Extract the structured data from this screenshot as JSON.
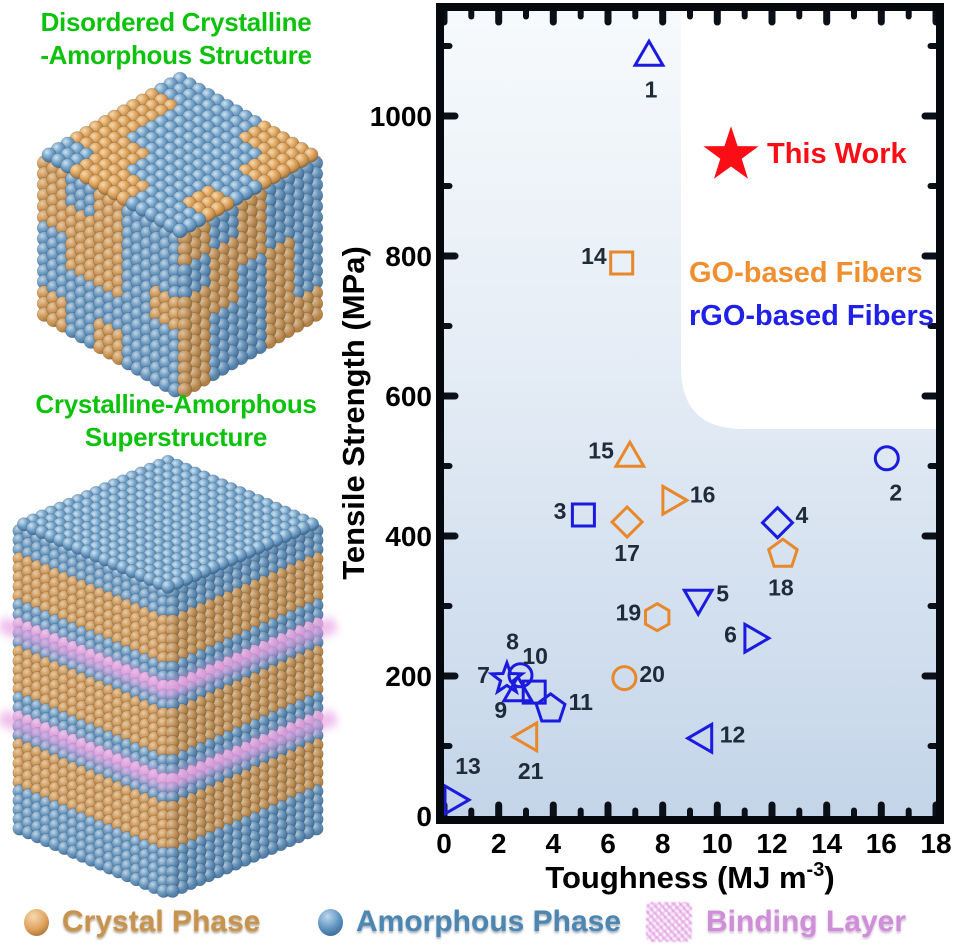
{
  "figure": {
    "panel_titles": {
      "title_color": "#0dc20d",
      "disordered_line1": "Disordered Crystalline",
      "disordered_line2": "-Amorphous Structure",
      "superstructure_line1": "Crystalline-Amorphous",
      "superstructure_line2": "Superstructure"
    },
    "bottom_legend": {
      "items": [
        {
          "label": "Crystal Phase",
          "icon": "orange-sphere-icon",
          "text_color": "#c8934d"
        },
        {
          "label": "Amorphous Phase",
          "icon": "blue-sphere-icon",
          "text_color": "#4e86b2"
        },
        {
          "label": "Binding Layer",
          "icon": "pink-hatch-icon",
          "text_color": "#cf8ed8"
        }
      ]
    }
  },
  "chart_data": {
    "type": "scatter",
    "title": "",
    "xlabel": {
      "pre": "Toughness (MJ m",
      "sup": "-3",
      "post": ")"
    },
    "ylabel": "Tensile Strength (MPa)",
    "xlim": [
      0,
      18
    ],
    "ylim": [
      0,
      1150
    ],
    "xticks": [
      0,
      2,
      4,
      6,
      8,
      10,
      12,
      14,
      16,
      18
    ],
    "yticks": [
      0,
      200,
      400,
      600,
      800,
      1000
    ],
    "x_minor_step": 1,
    "y_minor_step": 100,
    "grid": false,
    "legend_position": "inside-upper-right",
    "highlight": {
      "label": "This Work",
      "x": 10.5,
      "y": 944,
      "color": "#fb0d15",
      "marker": "star-filled"
    },
    "series": [
      {
        "name": "GO-based Fibers",
        "color": "#e8882a",
        "label_color": "#ef8f2f",
        "points": [
          {
            "n": "14",
            "shape": "square",
            "x": 6.5,
            "y": 790,
            "lp": [
              -15,
              -5,
              "end"
            ]
          },
          {
            "n": "15",
            "shape": "triangle-up",
            "x": 6.8,
            "y": 511,
            "lp": [
              -16,
              -6,
              "end"
            ]
          },
          {
            "n": "16",
            "shape": "triangle-right",
            "x": 8.3,
            "y": 451,
            "lp": [
              19,
              -4,
              "start"
            ]
          },
          {
            "n": "17",
            "shape": "diamond",
            "x": 6.7,
            "y": 420,
            "lp": [
              0,
              33,
              "middle"
            ]
          },
          {
            "n": "18",
            "shape": "pentagon",
            "x": 12.4,
            "y": 374,
            "lp": [
              -2,
              35,
              "middle"
            ]
          },
          {
            "n": "19",
            "shape": "hexagon",
            "x": 7.8,
            "y": 284,
            "lp": [
              -16,
              -3,
              "end"
            ]
          },
          {
            "n": "20",
            "shape": "circle",
            "x": 6.6,
            "y": 197,
            "lp": [
              15,
              -2,
              "start"
            ]
          },
          {
            "n": "21",
            "shape": "triangle-left",
            "x": 3.1,
            "y": 113,
            "lp": [
              2,
              36,
              "middle"
            ]
          }
        ]
      },
      {
        "name": "rGO-based Fibers",
        "color": "#1b1be0",
        "label_color": "#2020e8",
        "points": [
          {
            "n": "1",
            "shape": "triangle-up",
            "x": 7.5,
            "y": 1084,
            "lp": [
              2,
              34,
              "middle"
            ]
          },
          {
            "n": "2",
            "shape": "circle",
            "x": 16.2,
            "y": 511,
            "lp": [
              9,
              36,
              "middle"
            ]
          },
          {
            "n": "3",
            "shape": "square",
            "x": 5.1,
            "y": 430,
            "lp": [
              -17,
              -2,
              "end"
            ]
          },
          {
            "n": "4",
            "shape": "diamond",
            "x": 12.2,
            "y": 419,
            "lp": [
              18,
              -6,
              "start"
            ]
          },
          {
            "n": "5",
            "shape": "triangle-down",
            "x": 9.3,
            "y": 311,
            "lp": [
              18,
              -3,
              "start"
            ]
          },
          {
            "n": "6",
            "shape": "triangle-right",
            "x": 11.3,
            "y": 254,
            "lp": [
              -16,
              -2,
              "end"
            ]
          },
          {
            "n": "9",
            "shape": "triangle-up",
            "x": 2.7,
            "y": 176,
            "lp": [
              -17,
              19,
              "middle"
            ]
          },
          {
            "n": "10",
            "shape": "square",
            "x": 3.3,
            "y": 177,
            "lp": [
              1,
              -34,
              "middle"
            ]
          },
          {
            "n": "8",
            "shape": "circle",
            "x": 2.8,
            "y": 201,
            "lp": [
              -8,
              -32,
              "middle"
            ]
          },
          {
            "n": "7",
            "shape": "star",
            "x": 2.3,
            "y": 196,
            "lp": [
              -17,
              -2,
              "end"
            ]
          },
          {
            "n": "11",
            "shape": "pentagon",
            "x": 3.9,
            "y": 153,
            "lp": [
              18,
              -5,
              "start"
            ]
          },
          {
            "n": "12",
            "shape": "triangle-left",
            "x": 9.5,
            "y": 111,
            "lp": [
              16,
              -2,
              "start"
            ]
          },
          {
            "n": "13",
            "shape": "triangle-right",
            "x": 0.33,
            "y": 23,
            "lp": [
              15,
              -32,
              "middle"
            ]
          }
        ]
      }
    ]
  },
  "colors": {
    "plot_bg_top": "#f7fafc",
    "plot_bg_mid": "#e4ecf5",
    "plot_bg_bottom": "#c4d5e9",
    "frame": "#05080d",
    "tick": "#0b1018",
    "tick_label": "#000000",
    "point_label": "#1f2b38",
    "crystal_sphere": "#dfa25e",
    "amorphous_sphere": "#5b90bd",
    "binding_pink": "#e79fe2"
  }
}
